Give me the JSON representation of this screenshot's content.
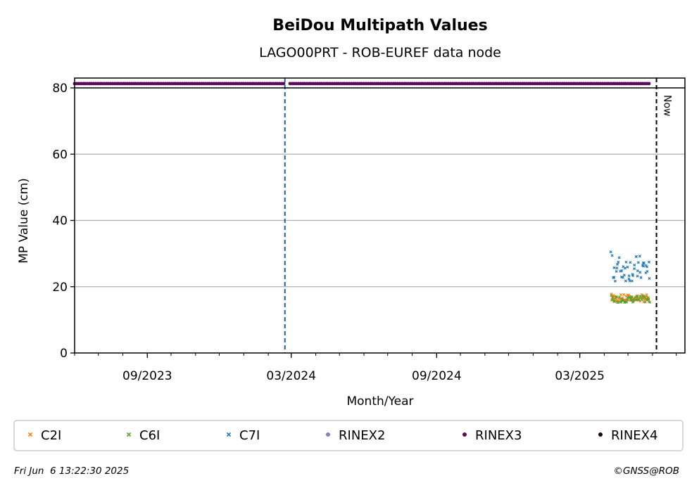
{
  "chart_data": {
    "type": "scatter",
    "title": "BeiDou Multipath Values",
    "subtitle": "LAGO00PRT - ROB-EUREF data node",
    "xlabel": "Month/Year",
    "ylabel": "MP Value (cm)",
    "xlim": [
      "2023-06-01",
      "2025-07-12"
    ],
    "ylim": [
      0,
      80
    ],
    "xticks": [
      {
        "date": "2023-09-01",
        "label": "09/2023"
      },
      {
        "date": "2024-03-01",
        "label": "03/2024"
      },
      {
        "date": "2024-09-01",
        "label": "09/2024"
      },
      {
        "date": "2025-03-01",
        "label": "03/2025"
      }
    ],
    "yticks": [
      0,
      20,
      40,
      60,
      80
    ],
    "grid": "y",
    "legend_position": "bottom",
    "vertical_lines": [
      {
        "date": "2024-02-22",
        "color": "#1f5fa6",
        "style": "dashed"
      },
      {
        "date": "2025-06-06",
        "color": "#000000",
        "style": "dashed",
        "label": "Now"
      }
    ],
    "series": [
      {
        "name": "C2I",
        "color": "#ff7f0e",
        "marker": "x",
        "x_range": [
          "2025-04-10",
          "2025-05-28"
        ],
        "y_min": 15.5,
        "y_max": 17.8,
        "mean": 16.5
      },
      {
        "name": "C6I",
        "color": "#5aa02c",
        "marker": "x",
        "x_range": [
          "2025-04-10",
          "2025-05-28"
        ],
        "y_min": 15.3,
        "y_max": 17.3,
        "mean": 16.2
      },
      {
        "name": "C7I",
        "color": "#1f77b4",
        "marker": "x",
        "x_range": [
          "2025-04-10",
          "2025-05-28"
        ],
        "y_min": 22.5,
        "y_max": 30.5,
        "mean": 25.5
      },
      {
        "name": "RINEX2",
        "color": "#7f7fbf",
        "marker": "dot"
      },
      {
        "name": "RINEX3",
        "color": "#5c0a5c",
        "marker": "dot",
        "x_range": [
          "2023-06-01",
          "2025-05-28"
        ],
        "y": 81.3,
        "gap": [
          "2024-02-22",
          "2024-02-28"
        ]
      },
      {
        "name": "RINEX4",
        "color": "#1a0010",
        "marker": "dot"
      }
    ]
  },
  "footer": {
    "timestamp": "Fri Jun  6 13:22:30 2025",
    "credit": "©GNSS@ROB"
  }
}
